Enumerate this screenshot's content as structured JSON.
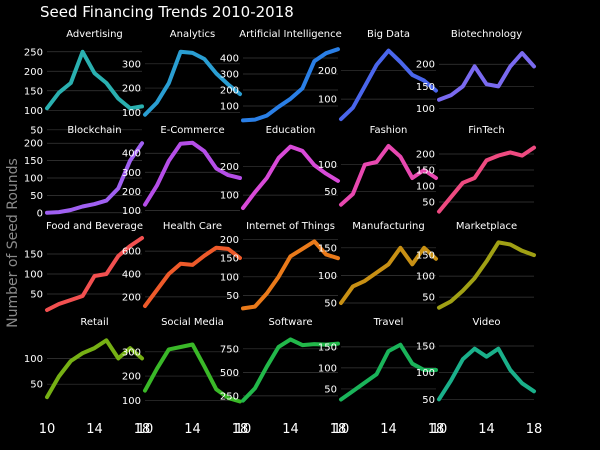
{
  "chart_data": {
    "type": "line",
    "title": "Seed Financing Trends 2010-2018",
    "ylabel": "Number of Seed Rounds",
    "xlabel": "",
    "background": "#000000",
    "grid": "horizontal",
    "x": [
      10,
      11,
      12,
      13,
      14,
      15,
      16,
      17,
      18
    ],
    "x_ticks": [
      10,
      14,
      18
    ],
    "panels": [
      {
        "name": "Advertising",
        "color": "#2ab0b0",
        "yticks": [
          50,
          100,
          150,
          200,
          250
        ],
        "ylim": [
          70,
          275
        ],
        "values": [
          105,
          145,
          170,
          250,
          195,
          170,
          130,
          105,
          110
        ]
      },
      {
        "name": "Analytics",
        "color": "#2a9ed2",
        "yticks": [
          100,
          200,
          300
        ],
        "ylim": [
          60,
          390
        ],
        "values": [
          90,
          140,
          220,
          350,
          345,
          320,
          260,
          215,
          175
        ]
      },
      {
        "name": "Artificial Intelligence",
        "color": "#2a7fe6",
        "yticks": [
          100,
          200,
          300,
          400
        ],
        "ylim": [
          0,
          500
        ],
        "values": [
          10,
          15,
          40,
          95,
          145,
          210,
          380,
          430,
          455
        ]
      },
      {
        "name": "Big Data",
        "color": "#4a66ec",
        "yticks": [
          100,
          200
        ],
        "ylim": [
          20,
          300
        ],
        "values": [
          30,
          70,
          145,
          220,
          270,
          230,
          185,
          165,
          130
        ]
      },
      {
        "name": "Biotechnology",
        "color": "#7a6af0",
        "yticks": [
          100,
          150,
          200
        ],
        "ylim": [
          70,
          250
        ],
        "values": [
          120,
          130,
          150,
          195,
          155,
          150,
          195,
          225,
          195
        ]
      },
      {
        "name": "Blockchain",
        "color": "#a060f2",
        "yticks": [
          0,
          50,
          100,
          150,
          200
        ],
        "ylim": [
          -15,
          215
        ],
        "values": [
          0,
          2,
          8,
          18,
          25,
          35,
          70,
          150,
          200
        ]
      },
      {
        "name": "E-Commerce",
        "color": "#b54ee8",
        "yticks": [
          100,
          200,
          300,
          400
        ],
        "ylim": [
          60,
          480
        ],
        "values": [
          130,
          230,
          360,
          450,
          455,
          410,
          320,
          285,
          270
        ]
      },
      {
        "name": "Education",
        "color": "#d84ad8",
        "yticks": [
          100,
          200
        ],
        "ylim": [
          20,
          300
        ],
        "values": [
          55,
          110,
          160,
          230,
          270,
          255,
          205,
          175,
          150
        ]
      },
      {
        "name": "Fashion",
        "color": "#e848b0",
        "yticks": [
          50,
          100
        ],
        "ylim": [
          0,
          150
        ],
        "values": [
          25,
          45,
          100,
          105,
          135,
          115,
          75,
          90,
          75
        ]
      },
      {
        "name": "FinTech",
        "color": "#ee4a80",
        "yticks": [
          50,
          100,
          150,
          200
        ],
        "ylim": [
          0,
          250
        ],
        "values": [
          20,
          65,
          110,
          125,
          180,
          195,
          205,
          195,
          220
        ]
      },
      {
        "name": "Food and Beverage",
        "color": "#f25050",
        "yticks": [
          50,
          100,
          150
        ],
        "ylim": [
          0,
          200
        ],
        "values": [
          10,
          25,
          35,
          45,
          95,
          100,
          145,
          170,
          190
        ]
      },
      {
        "name": "Health Care",
        "color": "#ee5a2a",
        "yticks": [
          200,
          400,
          600
        ],
        "ylim": [
          50,
          750
        ],
        "values": [
          120,
          260,
          400,
          490,
          480,
          560,
          630,
          620,
          540
        ]
      },
      {
        "name": "Internet of Things",
        "color": "#ea7a1a",
        "yticks": [
          50,
          100,
          150,
          200
        ],
        "ylim": [
          0,
          215
        ],
        "values": [
          15,
          20,
          55,
          100,
          155,
          175,
          195,
          160,
          150
        ]
      },
      {
        "name": "Manufacturing",
        "color": "#c89014",
        "yticks": [
          50,
          100,
          150
        ],
        "ylim": [
          30,
          175
        ],
        "values": [
          50,
          80,
          90,
          105,
          120,
          150,
          120,
          150,
          130
        ]
      },
      {
        "name": "Marketplace",
        "color": "#a0a014",
        "yticks": [
          50,
          100,
          150
        ],
        "ylim": [
          10,
          200
        ],
        "values": [
          25,
          40,
          65,
          95,
          135,
          180,
          175,
          160,
          150
        ]
      },
      {
        "name": "Retail",
        "color": "#76b014",
        "yticks": [
          50,
          100
        ],
        "ylim": [
          0,
          155
        ],
        "values": [
          25,
          65,
          95,
          110,
          120,
          135,
          100,
          120,
          100
        ]
      },
      {
        "name": "Social Media",
        "color": "#3ab828",
        "yticks": [
          100,
          200,
          300
        ],
        "ylim": [
          60,
          390
        ],
        "values": [
          140,
          230,
          310,
          320,
          330,
          240,
          145,
          110,
          95
        ]
      },
      {
        "name": "Software",
        "color": "#22b84a",
        "yticks": [
          250,
          500,
          750
        ],
        "ylim": [
          100,
          950
        ],
        "values": [
          200,
          330,
          560,
          770,
          850,
          790,
          800,
          795,
          805
        ]
      },
      {
        "name": "Travel",
        "color": "#1ab45a",
        "yticks": [
          50,
          100,
          150
        ],
        "ylim": [
          0,
          190
        ],
        "values": [
          25,
          45,
          65,
          85,
          140,
          155,
          110,
          95,
          95
        ]
      },
      {
        "name": "Video",
        "color": "#1ab08a",
        "yticks": [
          50,
          100,
          150
        ],
        "ylim": [
          30,
          180
        ],
        "values": [
          50,
          85,
          125,
          145,
          130,
          145,
          105,
          80,
          65
        ]
      }
    ]
  }
}
